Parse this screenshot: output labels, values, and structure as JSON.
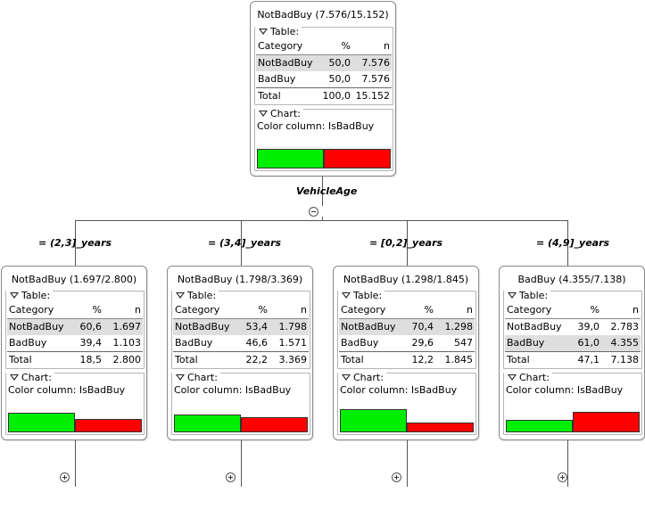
{
  "colors": {
    "green": "#00ee00",
    "red": "#ff0000",
    "highlight": "#dedede"
  },
  "icons": {
    "collapse": "circle-minus",
    "expand": "circle-plus",
    "section_toggle": "triangle-down"
  },
  "split_attribute": "VehicleAge",
  "nodes": [
    {
      "id": "root",
      "title": "NotBadBuy (7.576/15.152)",
      "table_label": "Table:",
      "chart_label": "Chart:",
      "color_column": "Color column: IsBadBuy",
      "header": [
        "Category",
        "%",
        "n"
      ],
      "rows": [
        {
          "category": "NotBadBuy",
          "pct": "50,0",
          "n": "7.576"
        },
        {
          "category": "BadBuy",
          "pct": "50,0",
          "n": "7.576"
        }
      ],
      "highlight_row": 0,
      "total": {
        "label": "Total",
        "pct": "100,0",
        "n": "15.152"
      },
      "chart_fractions": {
        "not_bad_buy": 0.5,
        "bad_buy": 0.5
      }
    },
    {
      "id": "c1",
      "edge_label": "= (2,3]_years",
      "title": "NotBadBuy (1.697/2.800)",
      "table_label": "Table:",
      "chart_label": "Chart:",
      "color_column": "Color column: IsBadBuy",
      "header": [
        "Category",
        "%",
        "n"
      ],
      "rows": [
        {
          "category": "NotBadBuy",
          "pct": "60,6",
          "n": "1.697"
        },
        {
          "category": "BadBuy",
          "pct": "39,4",
          "n": "1.103"
        }
      ],
      "highlight_row": 0,
      "total": {
        "label": "Total",
        "pct": "18,5",
        "n": "2.800"
      },
      "chart_fractions": {
        "not_bad_buy": 0.606,
        "bad_buy": 0.394
      }
    },
    {
      "id": "c2",
      "edge_label": "= (3,4]_years",
      "title": "NotBadBuy (1.798/3.369)",
      "table_label": "Table:",
      "chart_label": "Chart:",
      "color_column": "Color column: IsBadBuy",
      "header": [
        "Category",
        "%",
        "n"
      ],
      "rows": [
        {
          "category": "NotBadBuy",
          "pct": "53,4",
          "n": "1.798"
        },
        {
          "category": "BadBuy",
          "pct": "46,6",
          "n": "1.571"
        }
      ],
      "highlight_row": 0,
      "total": {
        "label": "Total",
        "pct": "22,2",
        "n": "3.369"
      },
      "chart_fractions": {
        "not_bad_buy": 0.534,
        "bad_buy": 0.466
      }
    },
    {
      "id": "c3",
      "edge_label": "= [0,2]_years",
      "title": "NotBadBuy (1.298/1.845)",
      "table_label": "Table:",
      "chart_label": "Chart:",
      "color_column": "Color column: IsBadBuy",
      "header": [
        "Category",
        "%",
        "n"
      ],
      "rows": [
        {
          "category": "NotBadBuy",
          "pct": "70,4",
          "n": "1.298"
        },
        {
          "category": "BadBuy",
          "pct": "29,6",
          "n": "547"
        }
      ],
      "highlight_row": 0,
      "total": {
        "label": "Total",
        "pct": "12,2",
        "n": "1.845"
      },
      "chart_fractions": {
        "not_bad_buy": 0.704,
        "bad_buy": 0.296
      }
    },
    {
      "id": "c4",
      "edge_label": "= (4,9]_years",
      "title": "BadBuy (4.355/7.138)",
      "table_label": "Table:",
      "chart_label": "Chart:",
      "color_column": "Color column: IsBadBuy",
      "header": [
        "Category",
        "%",
        "n"
      ],
      "rows": [
        {
          "category": "NotBadBuy",
          "pct": "39,0",
          "n": "2.783"
        },
        {
          "category": "BadBuy",
          "pct": "61,0",
          "n": "4.355"
        }
      ],
      "highlight_row": 1,
      "total": {
        "label": "Total",
        "pct": "47,1",
        "n": "7.138"
      },
      "chart_fractions": {
        "not_bad_buy": 0.39,
        "bad_buy": 0.61
      }
    }
  ]
}
